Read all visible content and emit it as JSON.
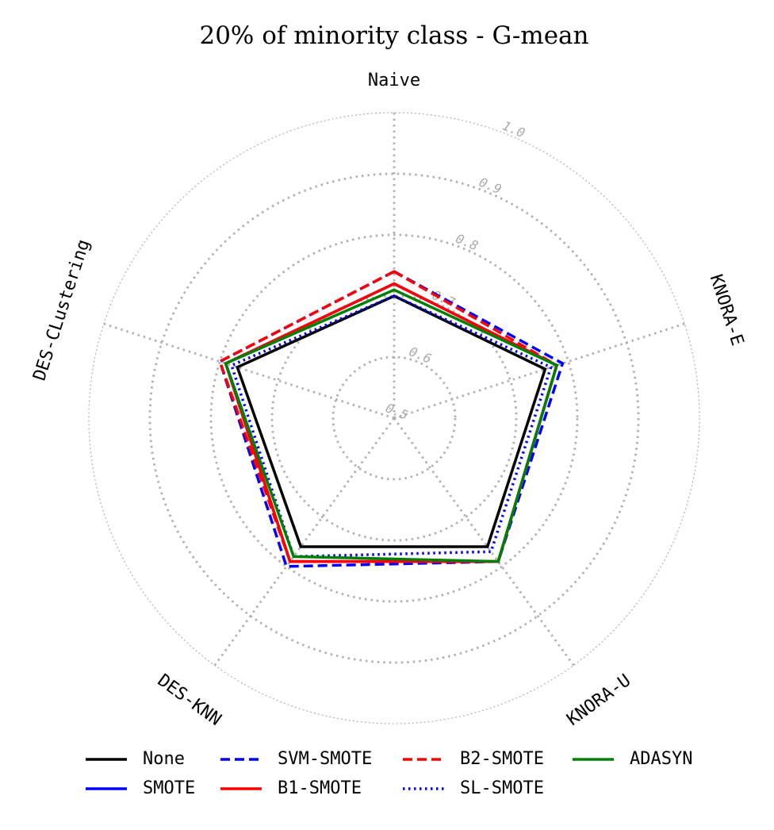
{
  "chart_data": {
    "type": "radar",
    "title": "20% of minority class - G-mean",
    "axes": [
      "Naive",
      "KNORA-E",
      "KNORA-U",
      "DES-KNN",
      "DES-CLustering"
    ],
    "rlim": [
      0.5,
      1.0
    ],
    "rticks": [
      0.5,
      0.6,
      0.7,
      0.8,
      0.9,
      1.0
    ],
    "rtick_labels": [
      "0.5",
      "0.6",
      "0.7",
      "0.8",
      "0.9",
      "1.0"
    ],
    "grid": true,
    "legend_position": "bottom",
    "series": [
      {
        "name": "None",
        "color": "#000000",
        "dash": "solid",
        "values": [
          0.7,
          0.76,
          0.76,
          0.76,
          0.77
        ]
      },
      {
        "name": "SMOTE",
        "color": "#0000ff",
        "dash": "solid",
        "values": [
          0.72,
          0.78,
          0.79,
          0.79,
          0.79
        ]
      },
      {
        "name": "SVM-SMOTE",
        "color": "#0000ff",
        "dash": "dashed",
        "values": [
          0.74,
          0.79,
          0.79,
          0.8,
          0.8
        ]
      },
      {
        "name": "B1-SMOTE",
        "color": "#ff0000",
        "dash": "solid",
        "values": [
          0.72,
          0.78,
          0.79,
          0.79,
          0.79
        ]
      },
      {
        "name": "B2-SMOTE",
        "color": "#ff0000",
        "dash": "dashed",
        "values": [
          0.74,
          0.78,
          0.79,
          0.79,
          0.8
        ]
      },
      {
        "name": "SL-SMOTE",
        "color": "#0000ff",
        "dash": "dotted",
        "values": [
          0.7,
          0.77,
          0.77,
          0.78,
          0.78
        ]
      },
      {
        "name": "ADASYN",
        "color": "#008000",
        "dash": "solid",
        "values": [
          0.71,
          0.78,
          0.79,
          0.78,
          0.79
        ]
      }
    ]
  }
}
